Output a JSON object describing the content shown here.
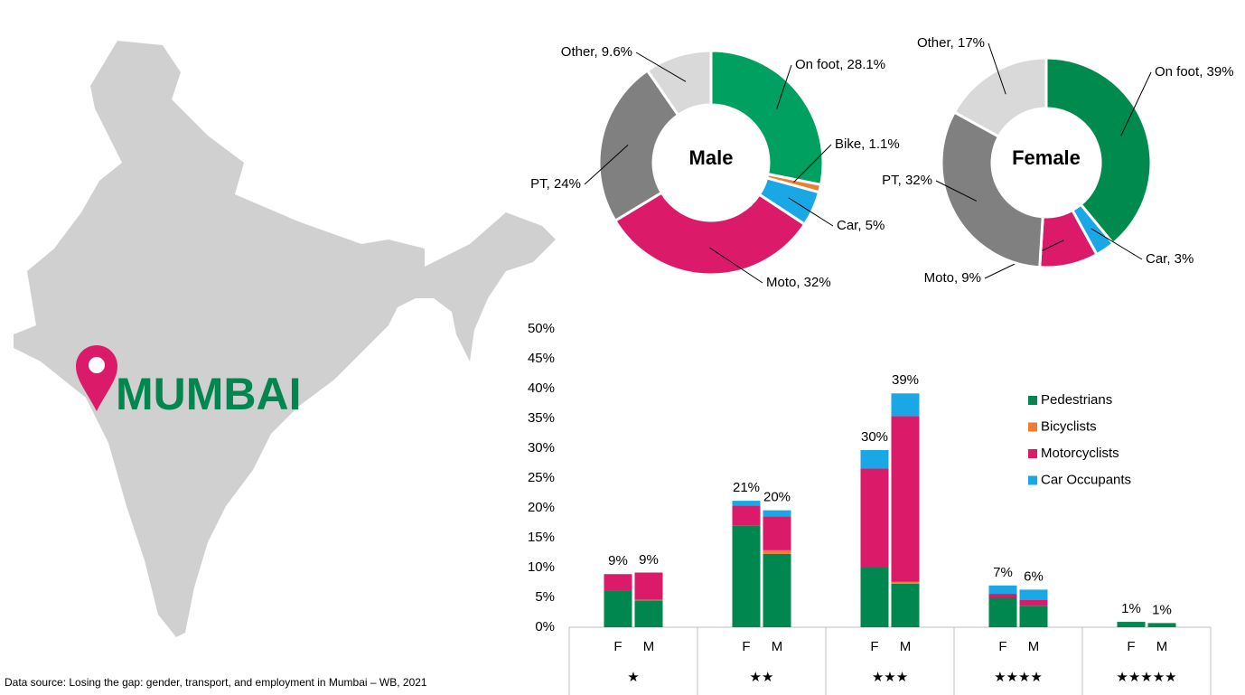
{
  "map_label": "MUMBAI",
  "source": "Data source: Losing the gap: gender, transport, and employment in Mumbai – WB, 2021",
  "chart_data": [
    {
      "type": "donut",
      "title": "Male",
      "values": [
        28.1,
        1.1,
        5,
        32,
        24,
        9.6
      ],
      "value_labels": [
        "On foot, 28.1%",
        "Bike, 1.1%",
        "Car, 5%",
        "Moto, 32%",
        "PT, 24%",
        "Other, 9.6%"
      ],
      "colors": [
        "#00a060",
        "#ed7d31",
        "#1aa7e6",
        "#dc1a6a",
        "#808080",
        "#d9d9d9"
      ]
    },
    {
      "type": "donut",
      "title": "Female",
      "values": [
        39,
        3,
        9,
        32,
        17
      ],
      "value_labels": [
        "On foot, 39%",
        "Car, 3%",
        "Moto, 9%",
        "PT, 32%",
        "Other, 17%"
      ],
      "colors": [
        "#008a4e",
        "#1aa7e6",
        "#dc1a6a",
        "#808080",
        "#d9d9d9"
      ]
    },
    {
      "type": "bar",
      "stacked": true,
      "categories": [
        "F",
        "M",
        "F",
        "M",
        "F",
        "M",
        "F",
        "M",
        "F",
        "M"
      ],
      "groups": [
        "★",
        "★★",
        "★★★",
        "★★★★",
        "★★★★★"
      ],
      "series": [
        {
          "name": "Pedestrians",
          "color": "#00874f",
          "values": [
            6.2,
            4.5,
            17,
            12.3,
            10,
            7.3,
            5,
            3.6,
            0.9,
            0.7
          ]
        },
        {
          "name": "Bicyclists",
          "color": "#ed7d31",
          "values": [
            0,
            0.1,
            0,
            0.6,
            0,
            0.3,
            0,
            0,
            0,
            0
          ]
        },
        {
          "name": "Motorcyclists",
          "color": "#dc1a6a",
          "values": [
            2.7,
            4.5,
            3.4,
            5.7,
            16.6,
            27.8,
            0.6,
            1,
            0,
            0
          ]
        },
        {
          "name": "Car Occupants",
          "color": "#1aa7e6",
          "values": [
            0,
            0.1,
            0.8,
            1,
            3.1,
            3.8,
            1.4,
            1.7,
            0,
            0
          ]
        }
      ],
      "totals": [
        8.9,
        9.1,
        21.2,
        19.6,
        29.7,
        39.2,
        7,
        6.3,
        0.9,
        0.7
      ],
      "total_labels": [
        "9%",
        "9%",
        "21%",
        "20%",
        "30%",
        "39%",
        "7%",
        "6%",
        "1%",
        "1%"
      ],
      "ylim": [
        0,
        50
      ],
      "yticks": [
        {
          "value": 0,
          "label": "0%"
        },
        {
          "value": 5,
          "label": "5%"
        },
        {
          "value": 10,
          "label": "10%"
        },
        {
          "value": 15,
          "label": "15%"
        },
        {
          "value": 20,
          "label": "20%"
        },
        {
          "value": 25,
          "label": "25%"
        },
        {
          "value": 30,
          "label": "30%"
        },
        {
          "value": 35,
          "label": "35%"
        },
        {
          "value": 40,
          "label": "40%"
        },
        {
          "value": 45,
          "label": "45%"
        },
        {
          "value": 50,
          "label": "50%"
        }
      ],
      "legend": "right"
    }
  ]
}
